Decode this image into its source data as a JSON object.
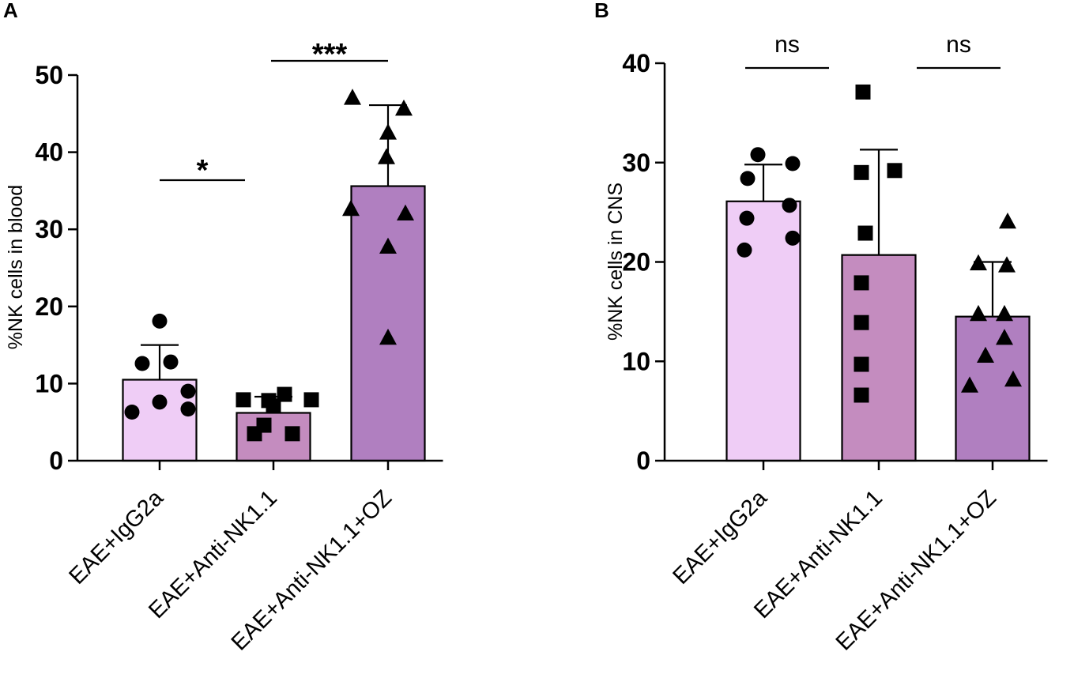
{
  "chart_data": [
    {
      "panel": "A",
      "type": "bar",
      "ylabel": "%NK cells in blood",
      "ylim": [
        0,
        50
      ],
      "yticks": [
        "0",
        "10",
        "20",
        "30",
        "40",
        "50"
      ],
      "categories": [
        "EAE+IgG2a",
        "EAE+Anti-NK1.1",
        "EAE+Anti-NK1.1+OZ"
      ],
      "values": [
        10.5,
        6.2,
        35.6
      ],
      "sd": [
        4.5,
        2.1,
        10.5
      ],
      "colors": [
        "#efcdf6",
        "#c48cbf",
        "#b07fc0"
      ],
      "markers": [
        "circle",
        "square",
        "triangle"
      ],
      "points": [
        [
          18.1,
          12.6,
          12.8,
          9.0,
          7.6,
          6.7,
          6.3
        ],
        [
          7.9,
          7.8,
          8.6,
          7.9,
          7.1,
          4.6,
          3.5,
          3.5
        ],
        [
          47.1,
          45.7,
          42.6,
          39.4,
          32.7,
          32.1,
          27.8,
          16.0
        ]
      ],
      "significance": [
        {
          "between": [
            0,
            1
          ],
          "label": "*",
          "y": 36.3
        },
        {
          "between": [
            1,
            2
          ],
          "label": "***",
          "y": 51.7
        }
      ]
    },
    {
      "panel": "B",
      "type": "bar",
      "ylabel": "%NK cells in CNS",
      "ylim": [
        0,
        40
      ],
      "yticks": [
        "0",
        "10",
        "20",
        "30",
        "40"
      ],
      "categories": [
        "EAE+IgG2a",
        "EAE+Anti-NK1.1",
        "EAE+Anti-NK1.1+OZ"
      ],
      "values": [
        26.1,
        20.7,
        14.5
      ],
      "sd": [
        3.7,
        10.6,
        5.5
      ],
      "colors": [
        "#efcdf6",
        "#c48cbf",
        "#b07fc0"
      ],
      "markers": [
        "circle",
        "square",
        "triangle"
      ],
      "points": [
        [
          30.8,
          29.9,
          28.4,
          25.7,
          24.4,
          22.4,
          21.2
        ],
        [
          37.1,
          29.2,
          29.0,
          22.9,
          17.9,
          13.9,
          9.7,
          6.6
        ],
        [
          24.1,
          19.9,
          19.7,
          14.8,
          14.8,
          12.4,
          10.6,
          8.2,
          7.6
        ]
      ],
      "significance": [
        {
          "between": [
            0,
            1
          ],
          "label": "ns",
          "y": 39.6
        },
        {
          "between": [
            1,
            2
          ],
          "label": "ns",
          "y": 39.6
        }
      ]
    }
  ]
}
